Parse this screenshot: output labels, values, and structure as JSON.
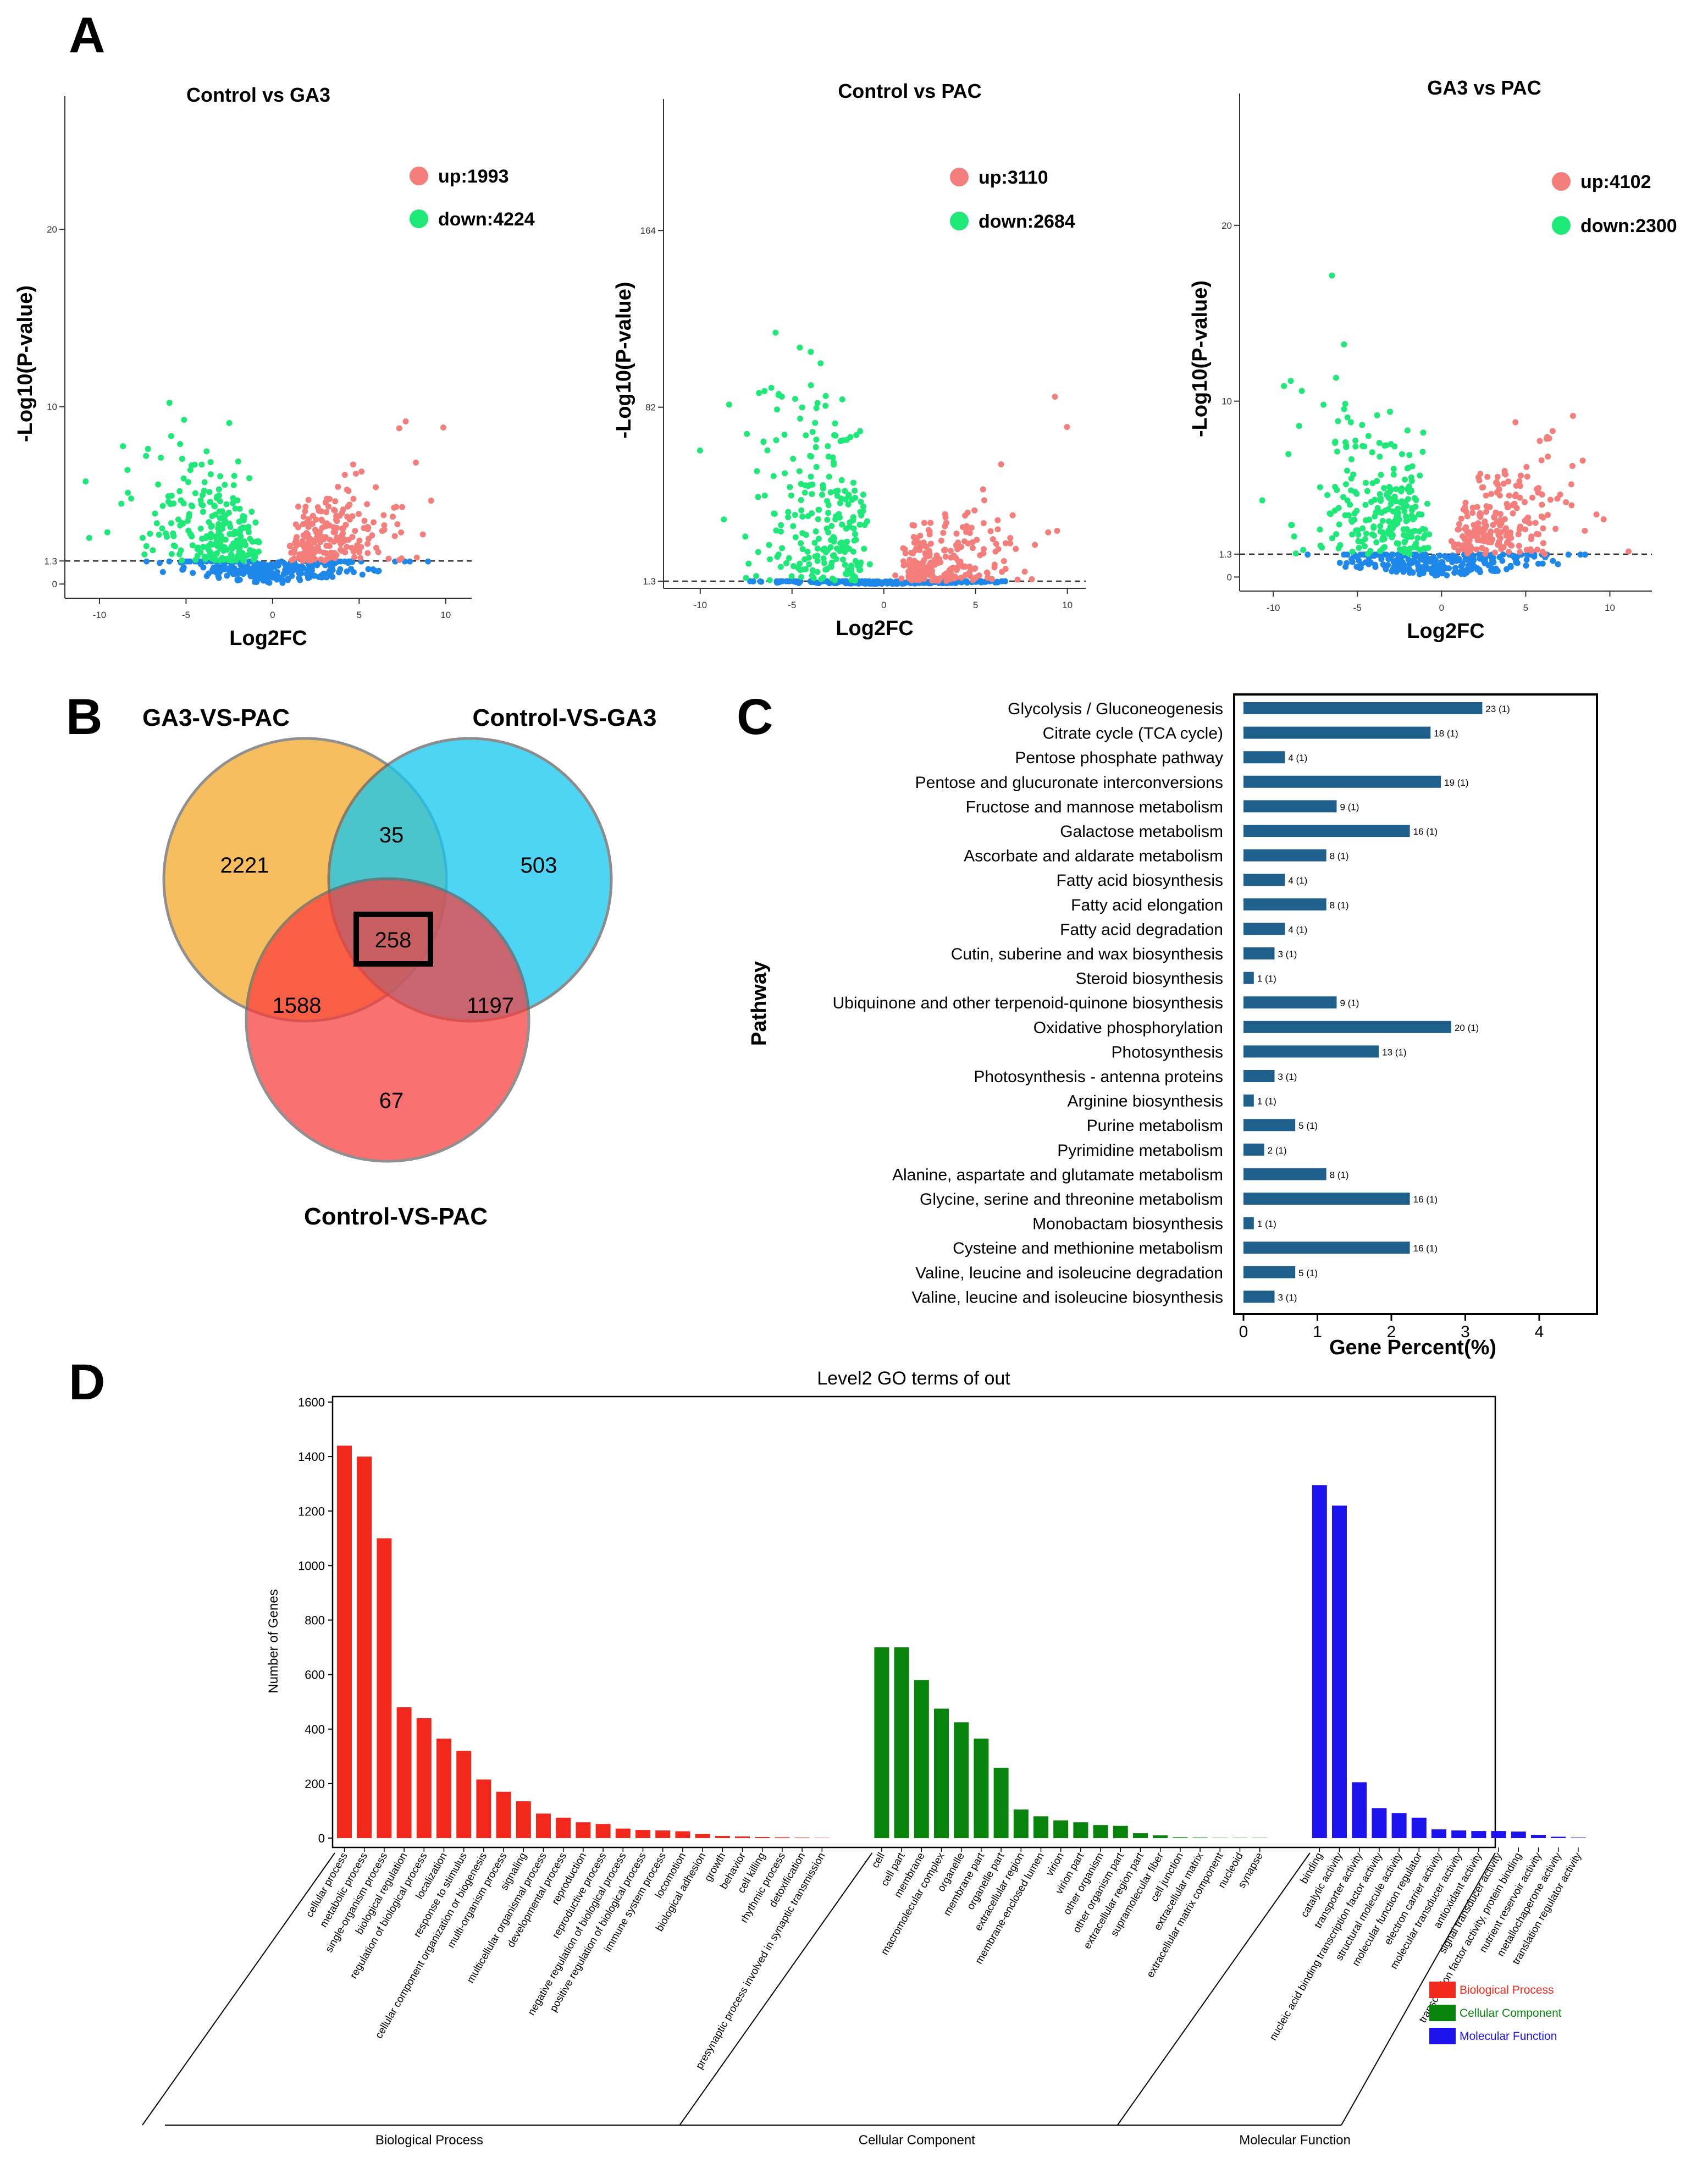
{
  "panel_labels": {
    "a": "A",
    "b": "B",
    "c": "C",
    "d": "D"
  },
  "colors": {
    "up": "#f47e7b",
    "down": "#1de878",
    "ns": "#1e88ea",
    "venn_ga3_pac": "#f5a623",
    "venn_control_ga3": "#12c7f0",
    "venn_control_pac": "#f93b3b",
    "kegg_bar": "#1f5f8b",
    "bp": "#f3281d",
    "cc": "#08840c",
    "mf": "#1c13ef"
  },
  "chart_data": [
    {
      "type": "scatter",
      "panel": "A",
      "title": "Control vs GA3",
      "xlabel": "Log2FC",
      "ylabel": "-Log10(P-value)",
      "xlim": [
        -12,
        11.5
      ],
      "ylim": [
        -0.8,
        27.5
      ],
      "xticks": [
        -10,
        -5,
        0,
        5,
        10
      ],
      "yticks": [
        0,
        1.3,
        10,
        20
      ],
      "ytick_labels": [
        "0",
        "1.3",
        "10",
        "20"
      ],
      "threshold": 1.3,
      "legend": [
        {
          "label": "up:1993",
          "class": "up"
        },
        {
          "label": "down:4224",
          "class": "down"
        }
      ]
    },
    {
      "type": "scatter",
      "panel": "A",
      "title": "Control vs PAC",
      "xlabel": "Log2FC",
      "ylabel": "-Log10(P-value)",
      "xlim": [
        -12,
        11
      ],
      "ylim": [
        -2,
        225
      ],
      "xticks": [
        -10,
        -5,
        0,
        5,
        10
      ],
      "yticks": [
        1.3,
        82,
        164
      ],
      "ytick_labels": [
        "1.3",
        "82",
        "164"
      ],
      "threshold": 1.3,
      "legend": [
        {
          "label": "up:3110",
          "class": "up"
        },
        {
          "label": "down:2684",
          "class": "down"
        }
      ]
    },
    {
      "type": "scatter",
      "panel": "A",
      "title": "GA3 vs PAC",
      "xlabel": "Log2FC",
      "ylabel": "-Log10(P-value)",
      "xlim": [
        -12,
        12.5
      ],
      "ylim": [
        -0.8,
        27.5
      ],
      "xticks": [
        -10,
        -5,
        0,
        5,
        10
      ],
      "yticks": [
        0,
        1.3,
        10,
        20
      ],
      "ytick_labels": [
        "0",
        "1.3",
        "10",
        "20"
      ],
      "threshold": 1.3,
      "legend": [
        {
          "label": "up:4102",
          "class": "up"
        },
        {
          "label": "down:2300",
          "class": "down"
        }
      ]
    },
    {
      "type": "venn",
      "panel": "B",
      "sets": [
        "GA3-VS-PAC",
        "Control-VS-GA3",
        "Control-VS-PAC"
      ],
      "regions": [
        {
          "sets": [
            "GA3-VS-PAC"
          ],
          "value": 2221
        },
        {
          "sets": [
            "Control-VS-GA3"
          ],
          "value": 503
        },
        {
          "sets": [
            "Control-VS-PAC"
          ],
          "value": 67
        },
        {
          "sets": [
            "GA3-VS-PAC",
            "Control-VS-GA3"
          ],
          "value": 35
        },
        {
          "sets": [
            "GA3-VS-PAC",
            "Control-VS-PAC"
          ],
          "value": 1588
        },
        {
          "sets": [
            "Control-VS-GA3",
            "Control-VS-PAC"
          ],
          "value": 1197
        },
        {
          "sets": [
            "GA3-VS-PAC",
            "Control-VS-GA3",
            "Control-VS-PAC"
          ],
          "value": 258,
          "highlighted": true
        }
      ]
    },
    {
      "type": "bar",
      "orientation": "horizontal",
      "panel": "C",
      "xlabel": "Gene Percent(%)",
      "ylabel": "Pathway",
      "xlim": [
        0,
        4.75
      ],
      "xticks": [
        0,
        1,
        2,
        3,
        4
      ],
      "categories": [
        "Glycolysis / Gluconeogenesis",
        "Citrate cycle (TCA cycle)",
        "Pentose phosphate pathway",
        "Pentose and glucuronate interconversions",
        "Fructose and mannose metabolism",
        "Galactose metabolism",
        "Ascorbate and aldarate metabolism",
        "Fatty acid biosynthesis",
        "Fatty acid elongation",
        "Fatty acid degradation",
        "Cutin, suberine and wax biosynthesis",
        "Steroid biosynthesis",
        "Ubiquinone and other terpenoid-quinone biosynthesis",
        "Oxidative phosphorylation",
        "Photosynthesis",
        "Photosynthesis - antenna proteins",
        "Arginine biosynthesis",
        "Purine metabolism",
        "Pyrimidine metabolism",
        "Alanine, aspartate and glutamate metabolism",
        "Glycine, serine and threonine metabolism",
        "Monobactam biosynthesis",
        "Cysteine and methionine metabolism",
        "Valine, leucine and isoleucine degradation",
        "Valine, leucine and isoleucine biosynthesis"
      ],
      "values": [
        3.23,
        2.53,
        0.56,
        2.67,
        1.26,
        2.25,
        1.12,
        0.56,
        1.12,
        0.56,
        0.42,
        0.14,
        1.26,
        2.81,
        1.83,
        0.42,
        0.14,
        0.7,
        0.28,
        1.12,
        2.25,
        0.14,
        2.25,
        0.7,
        0.42
      ],
      "labels": [
        "23 (1)",
        "18 (1)",
        "4 (1)",
        "19 (1)",
        "9 (1)",
        "16 (1)",
        "8 (1)",
        "4 (1)",
        "8 (1)",
        "4 (1)",
        "3 (1)",
        "1 (1)",
        "9 (1)",
        "20 (1)",
        "13 (1)",
        "3 (1)",
        "1 (1)",
        "5 (1)",
        "2 (1)",
        "8 (1)",
        "16 (1)",
        "1 (1)",
        "16 (1)",
        "5 (1)",
        "3 (1)"
      ]
    },
    {
      "type": "bar",
      "panel": "D",
      "title": "Level2 GO terms of out",
      "ylabel": "Number of Genes",
      "ylim": [
        0,
        1600
      ],
      "yticks": [
        0,
        200,
        400,
        600,
        800,
        1000,
        1200,
        1400,
        1600
      ],
      "groups": [
        {
          "name": "Biological Process",
          "class": "bp",
          "categories": [
            "cellular process",
            "metabolic process",
            "single-organism process",
            "biological regulation",
            "regulation of biological process",
            "localization",
            "response to stimulus",
            "cellular component organization or biogenesis",
            "multi-organism process",
            "signaling",
            "multicellular organismal process",
            "developmental process",
            "reproduction",
            "reproductive process",
            "negative regulation of biological process",
            "positive regulation of biological process",
            "immune system process",
            "locomotion",
            "biological adhesion",
            "growth",
            "behavior",
            "cell killing",
            "rhythmic process",
            "detoxification",
            "presynaptic process involved in synaptic transmission"
          ],
          "values": [
            1440,
            1400,
            1100,
            480,
            440,
            365,
            320,
            215,
            170,
            135,
            90,
            75,
            58,
            52,
            35,
            30,
            28,
            25,
            15,
            8,
            6,
            4,
            3,
            2,
            1
          ]
        },
        {
          "name": "Cellular Component",
          "class": "cc",
          "categories": [
            "cell",
            "cell part",
            "membrane",
            "macromolecular complex",
            "organelle",
            "membrane part",
            "organelle part",
            "extracellular region",
            "membrane-enclosed lumen",
            "virion",
            "virion part",
            "other organism",
            "other organism part",
            "extracellular region part",
            "supramolecular fiber",
            "cell junction",
            "extracellular matrix",
            "extracellular matrix component",
            "nucleoid",
            "synapse"
          ],
          "values": [
            700,
            700,
            580,
            475,
            425,
            365,
            258,
            105,
            80,
            65,
            58,
            48,
            45,
            18,
            10,
            3,
            2,
            1,
            1,
            1
          ]
        },
        {
          "name": "Molecular Function",
          "class": "mf",
          "categories": [
            "binding",
            "catalytic activity",
            "transporter activity",
            "nucleic acid binding transcription factor activity",
            "structural molecule activity",
            "molecular function regulator",
            "electron carrier activity",
            "molecular transducer activity",
            "antioxidant activity",
            "signal transducer activity",
            "transcription factor activity, protein binding",
            "nutrient reservoir activity",
            "metallochaperone activity",
            "translation regulator activity"
          ],
          "values": [
            1295,
            1220,
            205,
            110,
            92,
            75,
            32,
            28,
            26,
            26,
            24,
            12,
            5,
            2
          ]
        }
      ],
      "legend": [
        "Biological Process",
        "Cellular Component",
        "Molecular Function"
      ],
      "legend_position": "bottom-right"
    }
  ]
}
